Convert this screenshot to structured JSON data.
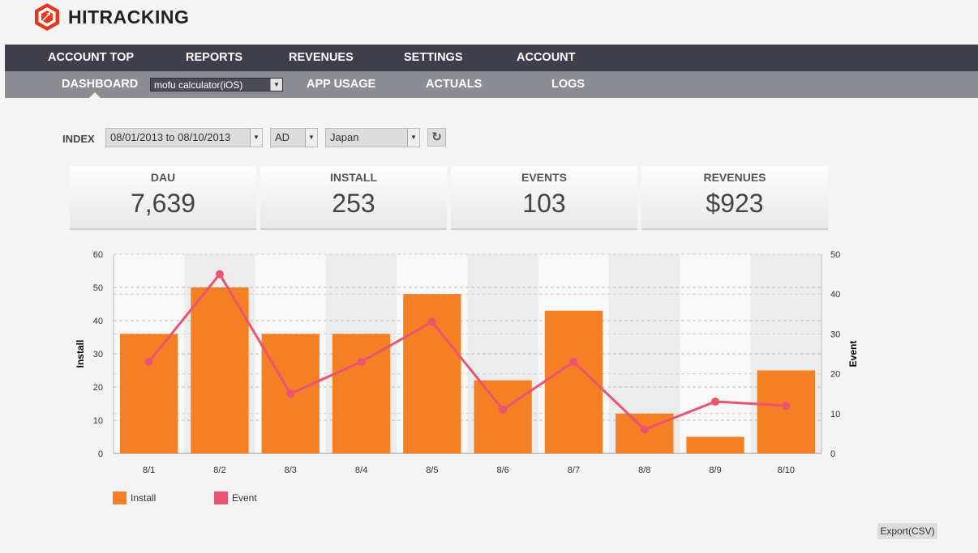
{
  "brand": {
    "name": "HITRACKING"
  },
  "nav_main": [
    "ACCOUNT TOP",
    "REPORTS",
    "REVENUES",
    "SETTINGS",
    "ACCOUNT"
  ],
  "nav_sub": {
    "dashboard": "DASHBOARD",
    "app_select": "mofu calculator(iOS)",
    "app_usage": "APP USAGE",
    "actuals": "ACTUALS",
    "logs": "LOGS"
  },
  "filters": {
    "label": "INDEX",
    "date_range": "08/01/2013 to 08/10/2013",
    "type": "AD",
    "country": "Japan"
  },
  "kpis": [
    {
      "label": "DAU",
      "value": "7,639"
    },
    {
      "label": "INSTALL",
      "value": "253"
    },
    {
      "label": "EVENTS",
      "value": "103"
    },
    {
      "label": "REVENUES",
      "value": "$923"
    }
  ],
  "chart_data": {
    "type": "bar",
    "categories": [
      "8/1",
      "8/2",
      "8/3",
      "8/4",
      "8/5",
      "8/6",
      "8/7",
      "8/8",
      "8/9",
      "8/10"
    ],
    "series": [
      {
        "name": "Install",
        "type": "bar",
        "axis": "left",
        "color": "#f47f24",
        "values": [
          36,
          50,
          36,
          36,
          48,
          22,
          43,
          12,
          5,
          25
        ]
      },
      {
        "name": "Event",
        "type": "line",
        "axis": "right",
        "color": "#eb5470",
        "values": [
          23,
          45,
          15,
          23,
          33,
          11,
          23,
          6,
          13,
          12
        ]
      }
    ],
    "ylabel": "Install",
    "y2label": "Event",
    "ylim": [
      0,
      60
    ],
    "y2lim": [
      0,
      50
    ],
    "yticks": [
      "0",
      "10",
      "20",
      "30",
      "40",
      "50",
      "60"
    ],
    "y2ticks": [
      "0",
      "10",
      "20",
      "30",
      "40",
      "50"
    ],
    "grid": true,
    "legend": "bottom-left"
  },
  "legend": [
    "Install",
    "Event"
  ],
  "export_label": "Export(CSV)",
  "colors": {
    "nav_dark": "#3e3f4a",
    "nav_sub": "#8c8d92",
    "bar": "#f47f24",
    "line": "#eb5470"
  }
}
